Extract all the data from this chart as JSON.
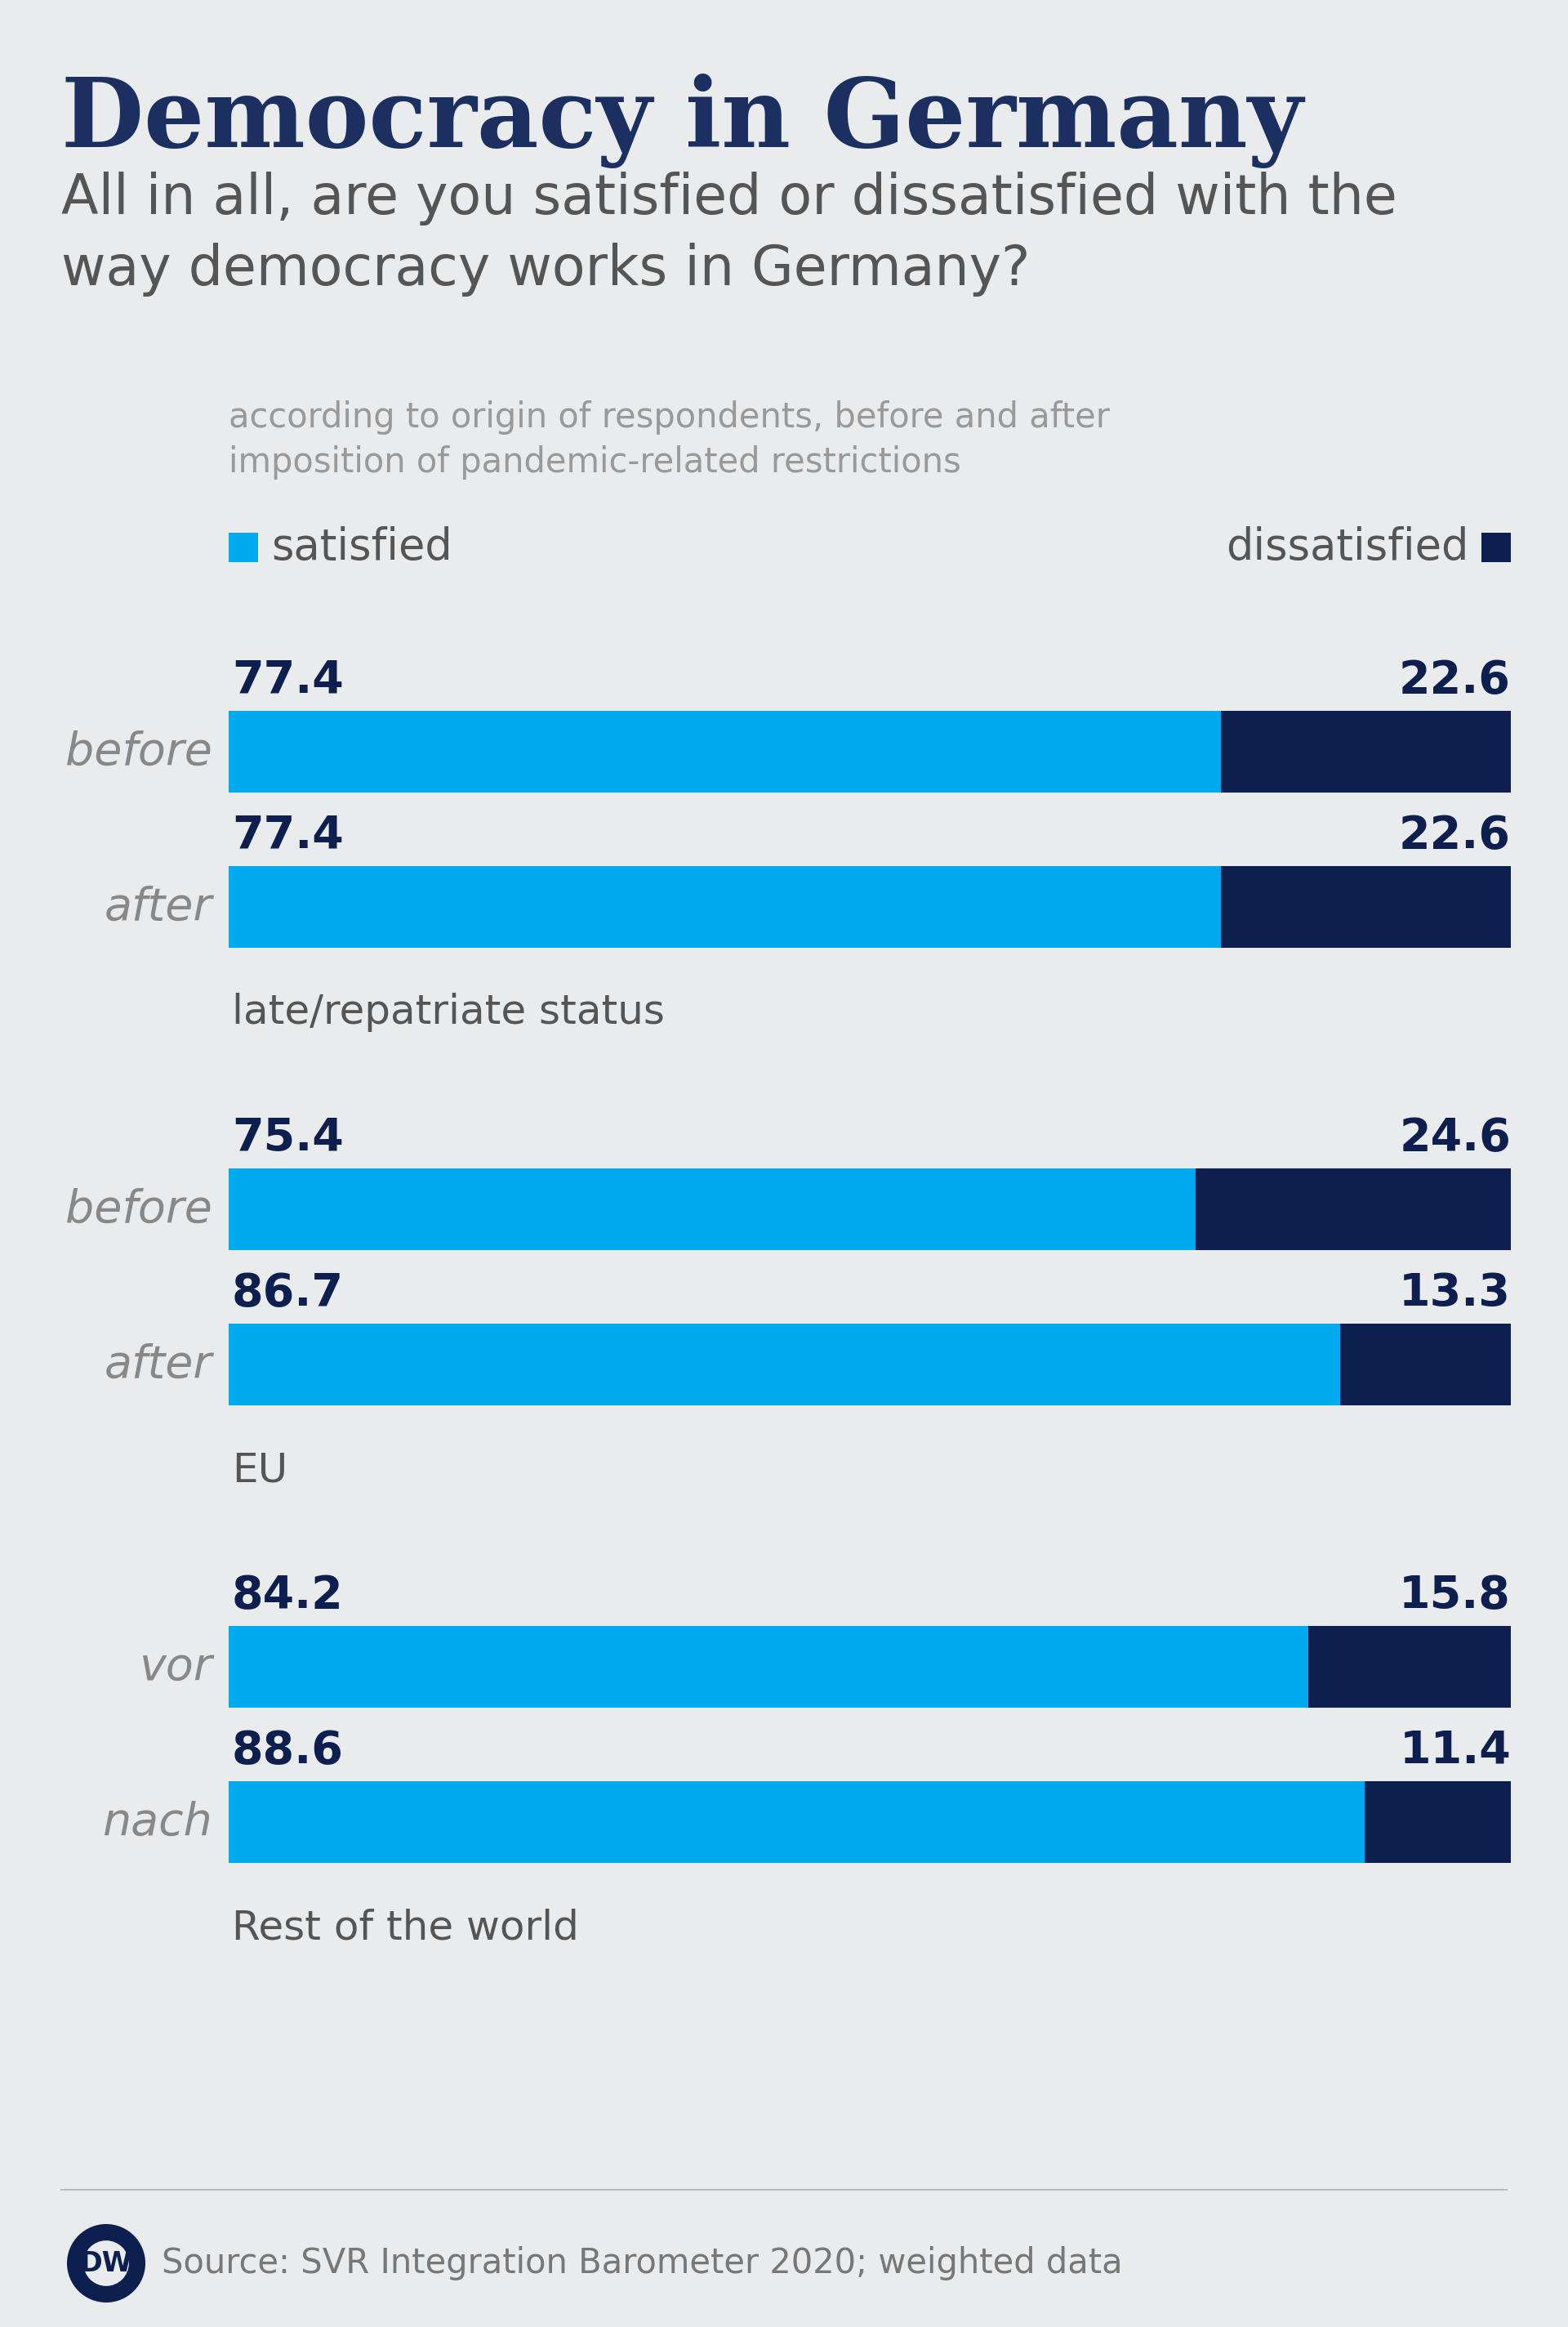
{
  "title": "Democracy in Germany",
  "subtitle": "All in all, are you satisfied or dissatisfied with the\nway democracy works in Germany?",
  "note": "according to origin of respondents, before and after\nimposition of pandemic-related restrictions",
  "source": "Source: SVR Integration Barometer 2020; weighted data",
  "background_color": "#EAEBEC",
  "title_color": "#1B3060",
  "subtitle_color": "#555555",
  "note_color": "#999999",
  "legend_color": "#555555",
  "bar_color_satisfied": "#00AAEE",
  "bar_color_dissatisfied": "#0D1F4E",
  "label_color": "#0D1F4E",
  "row_label_color": "#888888",
  "group_label_color": "#555555",
  "source_color": "#777777",
  "groups": [
    {
      "group_label": "late/repatriate status",
      "bars": [
        {
          "label": "before",
          "satisfied": 77.4,
          "dissatisfied": 22.6
        },
        {
          "label": "after",
          "satisfied": 77.4,
          "dissatisfied": 22.6
        }
      ]
    },
    {
      "group_label": "EU",
      "bars": [
        {
          "label": "before",
          "satisfied": 75.4,
          "dissatisfied": 24.6
        },
        {
          "label": "after",
          "satisfied": 86.7,
          "dissatisfied": 13.3
        }
      ]
    },
    {
      "group_label": "Rest of the world",
      "bars": [
        {
          "label": "vor",
          "satisfied": 84.2,
          "dissatisfied": 15.8
        },
        {
          "label": "nach",
          "satisfied": 88.6,
          "dissatisfied": 11.4
        }
      ]
    }
  ]
}
